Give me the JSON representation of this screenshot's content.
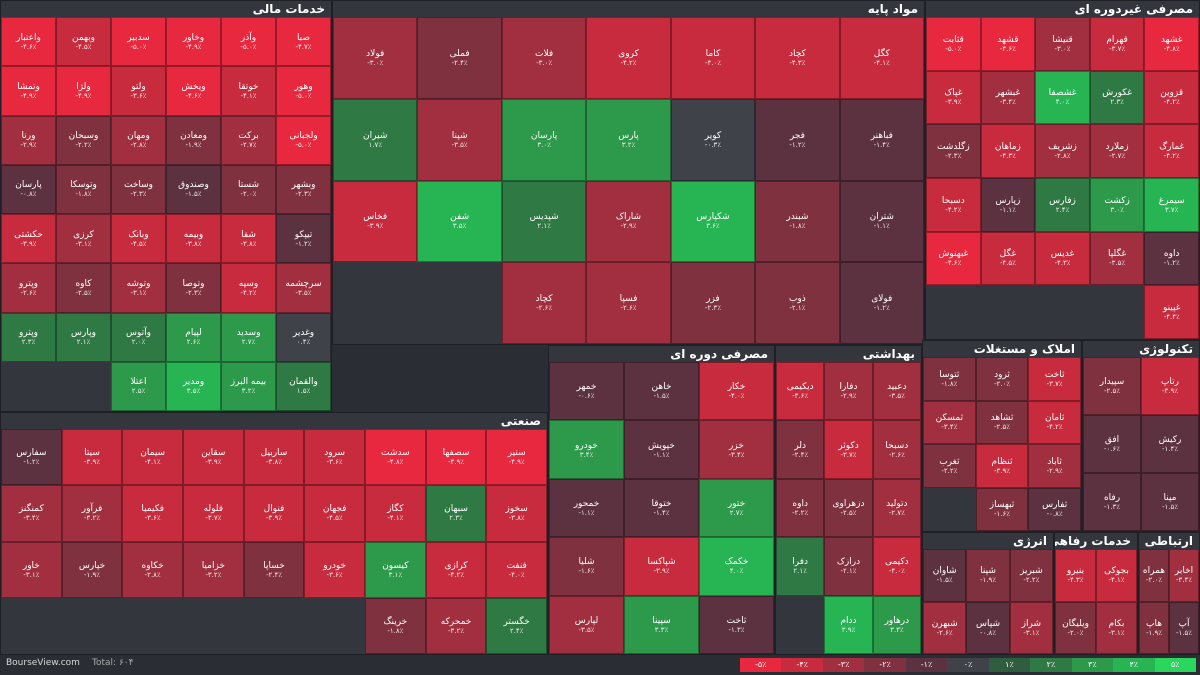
{
  "footer": {
    "site": "BourseView.com",
    "total_label": "Total:",
    "total_value": "۶۰۴"
  },
  "legend": [
    {
      "label": "-۵٪",
      "color": "#e8283e"
    },
    {
      "label": "-۴٪",
      "color": "#c72b3d"
    },
    {
      "label": "-۳٪",
      "color": "#a12f3f"
    },
    {
      "label": "-۲٪",
      "color": "#7f3140"
    },
    {
      "label": "-۱٪",
      "color": "#5c3140"
    },
    {
      "label": "۰٪",
      "color": "#40424a"
    },
    {
      "label": "۱٪",
      "color": "#2f5d3f"
    },
    {
      "label": "۲٪",
      "color": "#2f7a44"
    },
    {
      "label": "۳٪",
      "color": "#2d9a4b"
    },
    {
      "label": "۴٪",
      "color": "#26b552"
    },
    {
      "label": "۵٪",
      "color": "#2bd65c"
    }
  ],
  "sectors": [
    {
      "title": "خدمات مالی",
      "tiles": [
        {
          "n": "صبا",
          "p": -4.7
        },
        {
          "n": "وآذر",
          "p": -5
        },
        {
          "n": "وخاور",
          "p": -4.9
        },
        {
          "n": "سدبیر",
          "p": -5
        },
        {
          "n": "وبهمن",
          "p": -4.5
        },
        {
          "n": "واعتبار",
          "p": -4.6
        },
        {
          "n": "وهور",
          "p": -5
        },
        {
          "n": "خوتقا",
          "p": -4.1
        },
        {
          "n": "ویخش",
          "p": -4.6
        },
        {
          "n": "ولتو",
          "p": -3.6
        },
        {
          "n": "ولژا",
          "p": -4.9
        },
        {
          "n": "وتمشا",
          "p": -4.9
        },
        {
          "n": "ولجبانی",
          "p": -5
        },
        {
          "n": "برکت",
          "p": -2.7
        },
        {
          "n": "ومعادن",
          "p": -1.9
        },
        {
          "n": "ومهان",
          "p": -2.8
        },
        {
          "n": "وسبحان",
          "p": -2.2
        },
        {
          "n": "ورنا",
          "p": -2.9
        },
        {
          "n": "وبشهر",
          "p": -2.3
        },
        {
          "n": "شستا",
          "p": -2
        },
        {
          "n": "وصندوق",
          "p": -1.5
        },
        {
          "n": "وساخت",
          "p": -2.3
        },
        {
          "n": "وتوسکا",
          "p": -1.8
        },
        {
          "n": "پارسان",
          "p": -0.8
        },
        {
          "n": "تیپکو",
          "p": -1.2
        },
        {
          "n": "شفا",
          "p": -3.8
        },
        {
          "n": "وبیمه",
          "p": -3.8
        },
        {
          "n": "وبانک",
          "p": -4.5
        },
        {
          "n": "کرزی",
          "p": -3.1
        },
        {
          "n": "حکشتی",
          "p": -3.9
        },
        {
          "n": "سرچشمه",
          "p": -3.5
        },
        {
          "n": "وسپه",
          "p": -4.2
        },
        {
          "n": "وتوصا",
          "p": -2.3
        },
        {
          "n": "وتوشه",
          "p": -3.1
        },
        {
          "n": "کاوه",
          "p": -2.5
        },
        {
          "n": "وپترو",
          "p": -2.6
        },
        {
          "n": "وغدیر",
          "p": 0.4
        },
        {
          "n": "وسدید",
          "p": 2.7
        },
        {
          "n": "لپیام",
          "p": 2.6
        },
        {
          "n": "وآتوس",
          "p": 2
        },
        {
          "n": "وپارس",
          "p": 2.1
        },
        {
          "n": "وپترو",
          "p": 2.3
        },
        {
          "n": "والقمان",
          "p": 1.5
        },
        {
          "n": "بیمه البرز",
          "p": 3.2
        },
        {
          "n": "ومدیر",
          "p": 3.5
        },
        {
          "n": "اعتلا",
          "p": 2.5
        }
      ]
    },
    {
      "title": "مواد پایه",
      "tiles": [
        {
          "n": "کگل",
          "p": -4.1
        },
        {
          "n": "کچاد",
          "p": -4.3
        },
        {
          "n": "کاما",
          "p": -4
        },
        {
          "n": "کروی",
          "p": -4.2
        },
        {
          "n": "فلات",
          "p": -3
        },
        {
          "n": "فملی",
          "p": -2.4
        },
        {
          "n": "فولاد",
          "p": -3
        },
        {
          "n": "فباهنر",
          "p": -1.4
        },
        {
          "n": "فجر",
          "p": -1.2
        },
        {
          "n": "کویر",
          "p": -0.3
        },
        {
          "n": "پارس",
          "p": 3.2
        },
        {
          "n": "پارسان",
          "p": 3
        },
        {
          "n": "شپنا",
          "p": -3.5
        },
        {
          "n": "شیران",
          "p": 1.7
        },
        {
          "n": "شتران",
          "p": -1.1
        },
        {
          "n": "شبندر",
          "p": -1.8
        },
        {
          "n": "شکپارس",
          "p": 3.6
        },
        {
          "n": "شاراک",
          "p": -2.9
        },
        {
          "n": "شپدیس",
          "p": 2.1
        },
        {
          "n": "شفن",
          "p": 3.5
        },
        {
          "n": "فخاس",
          "p": -3.9
        },
        {
          "n": "فولای",
          "p": -1.2
        },
        {
          "n": "ذوب",
          "p": -2.1
        },
        {
          "n": "فزر",
          "p": -2.3
        },
        {
          "n": "فسپا",
          "p": -2.6
        },
        {
          "n": "کچاد",
          "p": -2.6
        }
      ]
    },
    {
      "title": "مصرفی غیردوره ای",
      "tiles": [
        {
          "n": "غشهد",
          "p": -4.8
        },
        {
          "n": "قهرام",
          "p": -3.7
        },
        {
          "n": "قنیشا",
          "p": -3
        },
        {
          "n": "قشهد",
          "p": -4.6
        },
        {
          "n": "قثابت",
          "p": -5
        },
        {
          "n": "قزوین",
          "p": -4.2
        },
        {
          "n": "غکورش",
          "p": 2.3
        },
        {
          "n": "غشصفا",
          "p": 4
        },
        {
          "n": "غبشهر",
          "p": -3.4
        },
        {
          "n": "غپاک",
          "p": -3.9
        },
        {
          "n": "غمارگ",
          "p": -4.2
        },
        {
          "n": "زملارد",
          "p": -2.7
        },
        {
          "n": "زشریف",
          "p": -2.8
        },
        {
          "n": "زماهان",
          "p": -4.3
        },
        {
          "n": "زگلدشت",
          "p": -2.3
        },
        {
          "n": "سیمرغ",
          "p": 3.7
        },
        {
          "n": "زکشت",
          "p": 3
        },
        {
          "n": "زفارس",
          "p": 2.4
        },
        {
          "n": "زپارس",
          "p": -1.1
        },
        {
          "n": "دسبحا",
          "p": -4.2
        },
        {
          "n": "داوه",
          "p": -1.2
        },
        {
          "n": "غگلپا",
          "p": -3.5
        },
        {
          "n": "غدیس",
          "p": -4.3
        },
        {
          "n": "غگل",
          "p": -4.5
        },
        {
          "n": "غبهنوش",
          "p": -4.6
        },
        {
          "n": "غپینو",
          "p": -4.4
        }
      ]
    },
    {
      "title": "صنعتی",
      "tiles": [
        {
          "n": "سنیر",
          "p": -4.9
        },
        {
          "n": "سصفها",
          "p": -4.9
        },
        {
          "n": "سدشت",
          "p": -4.8
        },
        {
          "n": "سرود",
          "p": -3.6
        },
        {
          "n": "ساربیل",
          "p": -3.8
        },
        {
          "n": "سقاین",
          "p": -3.9
        },
        {
          "n": "سیمان",
          "p": -4.1
        },
        {
          "n": "سیتا",
          "p": -3.9
        },
        {
          "n": "سفارس",
          "p": -1.2
        },
        {
          "n": "سخوز",
          "p": -3.8
        },
        {
          "n": "سبهان",
          "p": 2.3
        },
        {
          "n": "کگاز",
          "p": -4.1
        },
        {
          "n": "فجهان",
          "p": -4.5
        },
        {
          "n": "فنوال",
          "p": -3.9
        },
        {
          "n": "فلوله",
          "p": -3.7
        },
        {
          "n": "فکیمیا",
          "p": -3.6
        },
        {
          "n": "فرآور",
          "p": -3.2
        },
        {
          "n": "کمنگنز",
          "p": -3.4
        },
        {
          "n": "فنفت",
          "p": -4
        },
        {
          "n": "کرازی",
          "p": -4.2
        },
        {
          "n": "کیسون",
          "p": 3.1
        },
        {
          "n": "خودرو",
          "p": -3.6
        },
        {
          "n": "خساپا",
          "p": -2.4
        },
        {
          "n": "خزامیا",
          "p": -3.2
        },
        {
          "n": "خکاوه",
          "p": -2.8
        },
        {
          "n": "خپارس",
          "p": -1.9
        },
        {
          "n": "خاور",
          "p": -3.1
        },
        {
          "n": "خگستر",
          "p": 2.4
        },
        {
          "n": "خمحرکه",
          "p": -3.2
        },
        {
          "n": "خرینگ",
          "p": -1.8
        }
      ]
    },
    {
      "title": "مصرفی دوره ای",
      "tiles": [
        {
          "n": "خکار",
          "p": -4
        },
        {
          "n": "خاهن",
          "p": -1.5
        },
        {
          "n": "خمهر",
          "p": -0.6
        },
        {
          "n": "خزر",
          "p": -3.4
        },
        {
          "n": "خپویش",
          "p": -1.1
        },
        {
          "n": "خودرو",
          "p": 3.4
        },
        {
          "n": "ختور",
          "p": 2.7
        },
        {
          "n": "ختوقا",
          "p": -1.4
        },
        {
          "n": "خمحور",
          "p": -1.1
        },
        {
          "n": "خکمک",
          "p": 4
        },
        {
          "n": "شپاکسا",
          "p": -3.9
        },
        {
          "n": "شلیا",
          "p": -1.6
        },
        {
          "n": "ثاخت",
          "p": -1.3
        },
        {
          "n": "سپینا",
          "p": 3.3
        },
        {
          "n": "لپارس",
          "p": -3.5
        }
      ]
    },
    {
      "title": "بهداشتی",
      "tiles": [
        {
          "n": "دعبید",
          "p": -3.5
        },
        {
          "n": "دفارا",
          "p": -2.9
        },
        {
          "n": "دیکیمی",
          "p": -3.6
        },
        {
          "n": "دسبحا",
          "p": -2.6
        },
        {
          "n": "دکوثر",
          "p": -3.7
        },
        {
          "n": "دلر",
          "p": -2.4
        },
        {
          "n": "دتولید",
          "p": -2.7
        },
        {
          "n": "دزهراوی",
          "p": -2.5
        },
        {
          "n": "داوه",
          "p": -2.2
        },
        {
          "n": "دکیمی",
          "p": -4
        },
        {
          "n": "درازک",
          "p": -2.1
        },
        {
          "n": "دفرا",
          "p": 2.1
        },
        {
          "n": "درهاور",
          "p": 3.3
        },
        {
          "n": "ددام",
          "p": 3.9
        }
      ]
    },
    {
      "title": "املاک و مستغلات",
      "tiles": [
        {
          "n": "ثاخت",
          "p": -3.7
        },
        {
          "n": "ثرود",
          "p": -2
        },
        {
          "n": "ثتوسا",
          "p": -1.8
        },
        {
          "n": "ثامان",
          "p": -4.2
        },
        {
          "n": "ثشاهد",
          "p": -2.5
        },
        {
          "n": "ثمسکن",
          "p": -3.4
        },
        {
          "n": "ثاباد",
          "p": -2.9
        },
        {
          "n": "ثنظام",
          "p": -3.9
        },
        {
          "n": "ثغرب",
          "p": -2.2
        },
        {
          "n": "ثفارس",
          "p": -0.8
        },
        {
          "n": "ثبهساز",
          "p": -1.6
        }
      ]
    },
    {
      "title": "تکنولوژی",
      "tiles": [
        {
          "n": "رتاپ",
          "p": -3.9
        },
        {
          "n": "سپیدار",
          "p": -2.5
        },
        {
          "n": "رکیش",
          "p": -1.4
        },
        {
          "n": "افق",
          "p": -0.6
        },
        {
          "n": "مپنا",
          "p": -1.5
        },
        {
          "n": "رفاه",
          "p": -1.3
        }
      ]
    },
    {
      "title": "انرژی",
      "tiles": [
        {
          "n": "شبریز",
          "p": -2.2
        },
        {
          "n": "شپنا",
          "p": -1.9
        },
        {
          "n": "شاوان",
          "p": -1.5
        },
        {
          "n": "شراز",
          "p": -3.1
        },
        {
          "n": "شپاس",
          "p": -0.8
        },
        {
          "n": "شبهرن",
          "p": -2.6
        }
      ]
    },
    {
      "title": "خدمات رفاهی",
      "tiles": [
        {
          "n": "بجوکی",
          "p": -4.1
        },
        {
          "n": "بنیرو",
          "p": -4.3
        },
        {
          "n": "بکام",
          "p": -3.1
        },
        {
          "n": "ویلیگان",
          "p": -2
        }
      ]
    },
    {
      "title": "ارتباطی",
      "tiles": [
        {
          "n": "اخابر",
          "p": -3.4
        },
        {
          "n": "همراه",
          "p": -2
        },
        {
          "n": "آپ",
          "p": -1.5
        },
        {
          "n": "هاپ",
          "p": -1.9
        }
      ]
    }
  ]
}
